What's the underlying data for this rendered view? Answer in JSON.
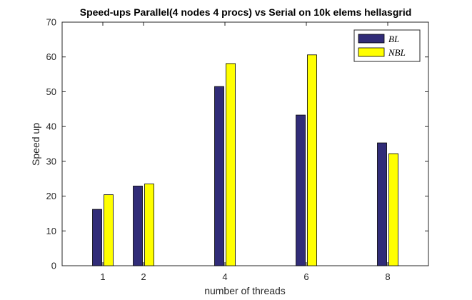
{
  "chart_data": {
    "type": "bar",
    "title": "Speed-ups Parallel(4 nodes 4 procs) vs Serial on 10k elems hellasgrid",
    "xlabel": "number of threads",
    "ylabel": "Speed up",
    "x": [
      1,
      2,
      4,
      6,
      8
    ],
    "categories": [
      "1",
      "2",
      "4",
      "6",
      "8"
    ],
    "xlim": [
      0,
      9
    ],
    "ylim": [
      0,
      70
    ],
    "yticks": [
      0,
      10,
      20,
      30,
      40,
      50,
      60,
      70
    ],
    "grid": false,
    "legend_position": "top-right",
    "series": [
      {
        "name": "BL",
        "color": "#312C78",
        "values": [
          16.2,
          22.9,
          51.5,
          43.3,
          35.3
        ]
      },
      {
        "name": "NBL",
        "color": "#FFFF00",
        "values": [
          20.4,
          23.5,
          58.1,
          60.6,
          32.2
        ]
      }
    ]
  }
}
